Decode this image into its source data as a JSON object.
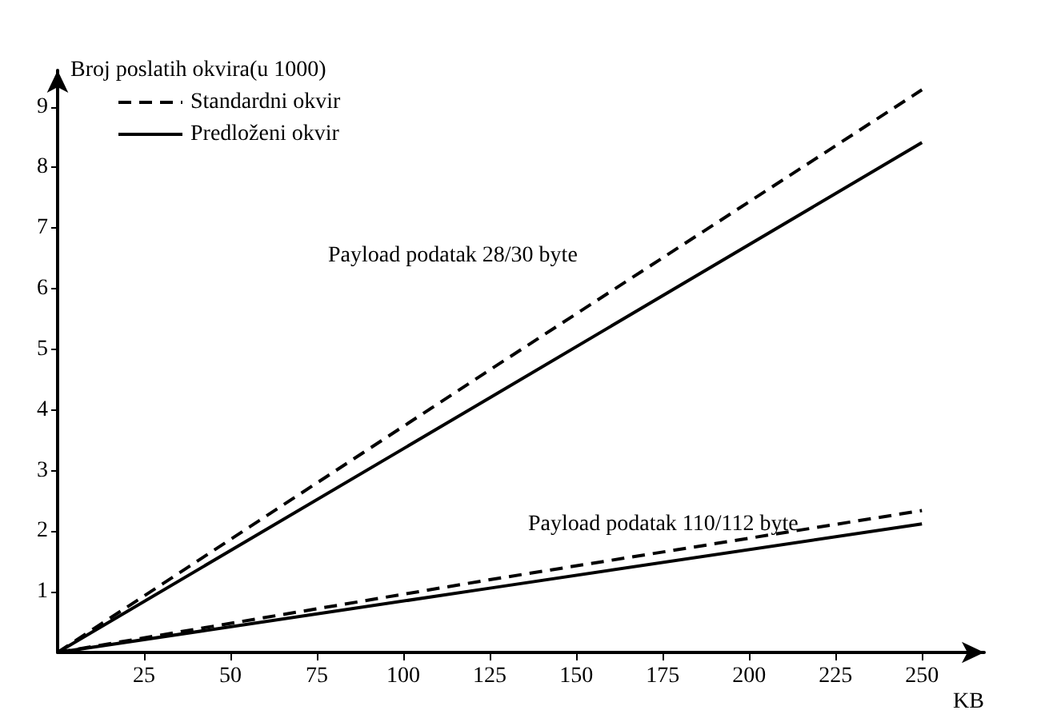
{
  "chart_data": {
    "type": "line",
    "ylabel": "Broj poslatih okvira(u 1000)",
    "xlabel": "KB",
    "xlim": [
      0,
      268
    ],
    "ylim": [
      0,
      9.6
    ],
    "xticks": [
      25,
      50,
      75,
      100,
      125,
      150,
      175,
      200,
      225,
      250
    ],
    "yticks": [
      1,
      2,
      3,
      4,
      5,
      6,
      7,
      8,
      9
    ],
    "grid": false,
    "legend": "top left",
    "marker": "none",
    "series": [
      {
        "name": "Standardni okvir",
        "color": "#000000",
        "line_style": "dashed",
        "x": [
          0,
          125,
          250
        ],
        "values": [
          0,
          4.66,
          9.28
        ]
      },
      {
        "name": "Predloženi okvir",
        "color": "#000000",
        "line_style": "solid",
        "x": [
          0,
          125,
          250
        ],
        "values": [
          0,
          4.2,
          8.41
        ]
      },
      {
        "color": "#000000",
        "line_style": "dashed",
        "x": [
          0,
          125,
          250
        ],
        "values": [
          0,
          1.2,
          2.34
        ]
      },
      {
        "color": "#000000",
        "line_style": "solid",
        "x": [
          0,
          125,
          250
        ],
        "values": [
          0,
          1.06,
          2.12
        ]
      }
    ],
    "annotations": [
      "Payload podatak 28/30 byte",
      "Payload podatak 110/112 byte"
    ]
  }
}
